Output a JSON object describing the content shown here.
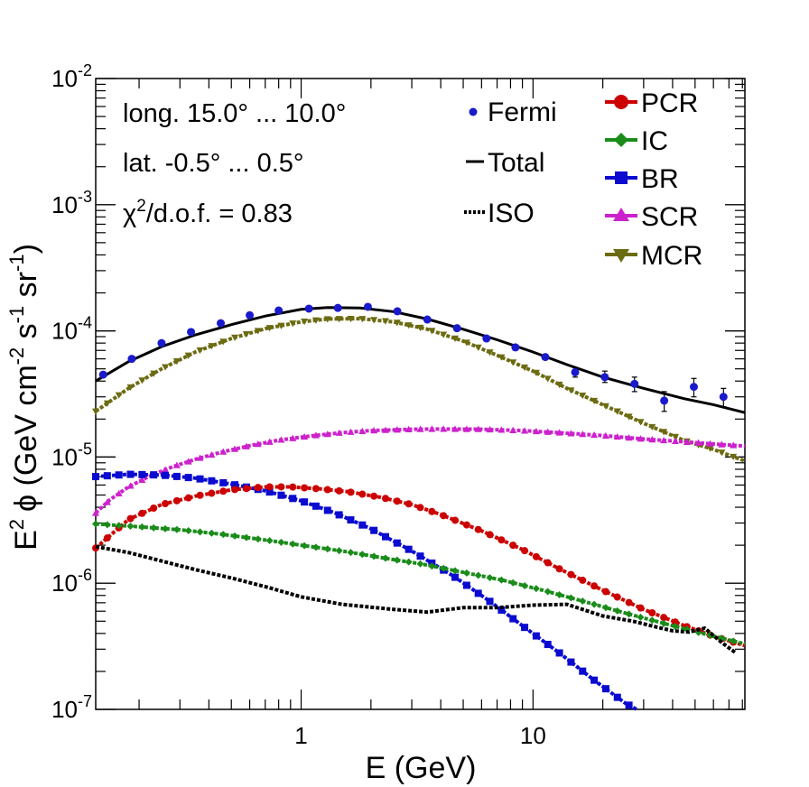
{
  "chart_data": {
    "type": "line",
    "title": "",
    "xlabel": "E (GeV)",
    "ylabel_parts": {
      "e": "E",
      "e_sup": "2",
      "phi": "ϕ (GeV cm",
      "cm_sup": "-2",
      "s": " s",
      "s_sup": "-1",
      "sr": " sr",
      "sr_sup": "-1",
      "close": ")"
    },
    "xscale": "log",
    "yscale": "log",
    "xlim": [
      0.13,
      82
    ],
    "ylim": [
      1e-07,
      0.01
    ],
    "x_tick_labels": [
      {
        "value": 1,
        "label": "1"
      },
      {
        "value": 10,
        "label": "10"
      }
    ],
    "y_tick_labels": [
      {
        "value": 1e-07,
        "base": "10",
        "exp": "-7"
      },
      {
        "value": 1e-06,
        "base": "10",
        "exp": "-6"
      },
      {
        "value": 1e-05,
        "base": "10",
        "exp": "-5"
      },
      {
        "value": 0.0001,
        "base": "10",
        "exp": "-4"
      },
      {
        "value": 0.001,
        "base": "10",
        "exp": "-3"
      },
      {
        "value": 0.01,
        "base": "10",
        "exp": "-2"
      }
    ],
    "annotations": {
      "longitude": "long. 15.0° ... 10.0°",
      "latitude": "lat. -0.5° ... 0.5°",
      "chi_symbol": "χ",
      "chi_sup": "2",
      "chi_rest": "/d.o.f. = 0.83"
    },
    "legend_left": [
      {
        "key": "fermi",
        "label": "Fermi"
      },
      {
        "key": "total",
        "label": "Total"
      },
      {
        "key": "iso",
        "label": "ISO"
      }
    ],
    "legend_right": [
      {
        "key": "pcr",
        "label": "PCR"
      },
      {
        "key": "ic",
        "label": "IC"
      },
      {
        "key": "br",
        "label": "BR"
      },
      {
        "key": "scr",
        "label": "SCR"
      },
      {
        "key": "mcr",
        "label": "MCR"
      }
    ],
    "fermi": {
      "name": "Fermi",
      "color": "#1a1acc",
      "points": [
        {
          "x": 0.14,
          "y": 4.5e-05
        },
        {
          "x": 0.186,
          "y": 6e-05
        },
        {
          "x": 0.25,
          "y": 8e-05
        },
        {
          "x": 0.335,
          "y": 9.8e-05
        },
        {
          "x": 0.45,
          "y": 0.000115
        },
        {
          "x": 0.6,
          "y": 0.000133
        },
        {
          "x": 0.8,
          "y": 0.000145
        },
        {
          "x": 1.08,
          "y": 0.00015
        },
        {
          "x": 1.44,
          "y": 0.000152
        },
        {
          "x": 1.94,
          "y": 0.000155
        },
        {
          "x": 2.6,
          "y": 0.000143
        },
        {
          "x": 3.5,
          "y": 0.000123
        },
        {
          "x": 4.7,
          "y": 0.000105
        },
        {
          "x": 6.3,
          "y": 8.7e-05
        },
        {
          "x": 8.4,
          "y": 7.4e-05
        },
        {
          "x": 11.3,
          "y": 6.2e-05
        },
        {
          "x": 15.2,
          "y": 4.7e-05,
          "err": [
            4.3e-05,
            5.1e-05
          ]
        },
        {
          "x": 20.4,
          "y": 4.3e-05,
          "err": [
            3.9e-05,
            4.8e-05
          ]
        },
        {
          "x": 27.4,
          "y": 3.8e-05,
          "err": [
            3.3e-05,
            4.3e-05
          ]
        },
        {
          "x": 36.8,
          "y": 2.8e-05,
          "err": [
            2.3e-05,
            3.3e-05
          ]
        },
        {
          "x": 49.4,
          "y": 3.6e-05,
          "err": [
            3e-05,
            4.2e-05
          ]
        },
        {
          "x": 66.3,
          "y": 3e-05,
          "err": [
            2.5e-05,
            3.5e-05
          ]
        }
      ]
    },
    "series": [
      {
        "key": "total",
        "name": "Total",
        "color": "#000000",
        "marker": "none",
        "dash": "solid",
        "x": [
          0.13,
          0.18,
          0.25,
          0.35,
          0.5,
          0.7,
          1.0,
          1.3,
          1.8,
          2.5,
          3.5,
          5,
          7,
          10,
          14,
          20,
          30,
          45,
          60,
          82
        ],
        "y": [
          4e-05,
          5.7e-05,
          7.5e-05,
          9.3e-05,
          0.000112,
          0.000131,
          0.000148,
          0.000153,
          0.000152,
          0.000142,
          0.000124,
          0.000103,
          8.5e-05,
          6.8e-05,
          5.4e-05,
          4.3e-05,
          3.5e-05,
          2.9e-05,
          2.6e-05,
          2.25e-05
        ]
      },
      {
        "key": "mcr",
        "name": "MCR",
        "color": "#6b6b12",
        "marker": "tri-down",
        "dash": "dotted",
        "x": [
          0.13,
          0.18,
          0.25,
          0.35,
          0.5,
          0.7,
          1.0,
          1.3,
          1.8,
          2.5,
          3.5,
          5,
          7,
          10,
          14,
          20,
          30,
          45,
          60,
          82
        ],
        "y": [
          2.3e-05,
          3.5e-05,
          5e-05,
          6.8e-05,
          8.7e-05,
          0.000104,
          0.000118,
          0.000124,
          0.000125,
          0.000118,
          0.000103,
          8.3e-05,
          6.4e-05,
          4.8e-05,
          3.5e-05,
          2.6e-05,
          1.85e-05,
          1.35e-05,
          1.15e-05,
          9.3e-06
        ]
      },
      {
        "key": "scr",
        "name": "SCR",
        "color": "#cc22cc",
        "marker": "triangle",
        "dash": "dotted",
        "x": [
          0.13,
          0.15,
          0.18,
          0.22,
          0.28,
          0.35,
          0.45,
          0.6,
          0.8,
          1.1,
          1.5,
          2,
          3,
          4,
          6,
          9,
          13,
          20,
          30,
          45,
          60,
          82
        ],
        "y": [
          3.6e-06,
          4.6e-06,
          5.8e-06,
          7e-06,
          8.4e-06,
          9.6e-06,
          1.09e-05,
          1.23e-05,
          1.36e-05,
          1.47e-05,
          1.56e-05,
          1.62e-05,
          1.66e-05,
          1.67e-05,
          1.66e-05,
          1.62e-05,
          1.56e-05,
          1.48e-05,
          1.39e-05,
          1.32e-05,
          1.27e-05,
          1.22e-05
        ]
      },
      {
        "key": "br",
        "name": "BR",
        "color": "#0a0ad0",
        "marker": "square",
        "dash": "dotted",
        "x": [
          0.13,
          0.18,
          0.25,
          0.35,
          0.5,
          0.7,
          1.0,
          1.4,
          2.0,
          3.0,
          4.5,
          6.5,
          9,
          13,
          18,
          25,
          28
        ],
        "y": [
          7e-06,
          7.3e-06,
          7.2e-06,
          6.8e-06,
          6.1e-06,
          5.4e-06,
          4.5e-06,
          3.6e-06,
          2.7e-06,
          1.8e-06,
          1.15e-06,
          7.2e-07,
          4.6e-07,
          2.8e-07,
          1.75e-07,
          1.12e-07,
          1e-07
        ]
      },
      {
        "key": "pcr",
        "name": "PCR",
        "color": "#cc0000",
        "marker": "circle",
        "dash": "dotted",
        "x": [
          0.13,
          0.18,
          0.25,
          0.35,
          0.5,
          0.7,
          0.9,
          1.2,
          1.6,
          2.2,
          3,
          4,
          6,
          9,
          13,
          20,
          30,
          45,
          60,
          82
        ],
        "y": [
          1.9e-06,
          3.2e-06,
          4.2e-06,
          4.9e-06,
          5.5e-06,
          5.8e-06,
          5.8e-06,
          5.6e-06,
          5.3e-06,
          4.8e-06,
          4.2e-06,
          3.5e-06,
          2.6e-06,
          1.85e-06,
          1.3e-06,
          8.8e-07,
          6.2e-07,
          4.6e-07,
          3.8e-07,
          3.2e-07
        ]
      },
      {
        "key": "ic",
        "name": "IC",
        "color": "#1a8c1a",
        "marker": "diamond",
        "dash": "dotted",
        "x": [
          0.13,
          0.2,
          0.3,
          0.45,
          0.7,
          1.0,
          1.5,
          2.2,
          3.3,
          5,
          7.5,
          11,
          16,
          25,
          40,
          60,
          82
        ],
        "y": [
          2.95e-06,
          2.8e-06,
          2.65e-06,
          2.45e-06,
          2.2e-06,
          2e-06,
          1.8e-06,
          1.6e-06,
          1.42e-06,
          1.22e-06,
          1.05e-06,
          8.8e-07,
          7.3e-07,
          5.8e-07,
          4.6e-07,
          3.8e-07,
          3.3e-07
        ]
      },
      {
        "key": "iso",
        "name": "ISO",
        "color": "#000000",
        "marker": "none",
        "dash": "dotted",
        "x": [
          0.13,
          0.18,
          0.25,
          0.35,
          0.5,
          0.7,
          1.0,
          1.5,
          2.5,
          3.5,
          5,
          7,
          10,
          14,
          20,
          27,
          34,
          40,
          47,
          55,
          65,
          75
        ],
        "y": [
          1.95e-06,
          1.75e-06,
          1.5e-06,
          1.28e-06,
          1.1e-06,
          9.4e-07,
          7.8e-07,
          6.8e-07,
          6.2e-07,
          5.9e-07,
          6.4e-07,
          6.4e-07,
          6.7e-07,
          6.8e-07,
          5.5e-07,
          5e-07,
          4.5e-07,
          4.2e-07,
          4.1e-07,
          4.4e-07,
          3.4e-07,
          2.8e-07
        ]
      }
    ]
  }
}
